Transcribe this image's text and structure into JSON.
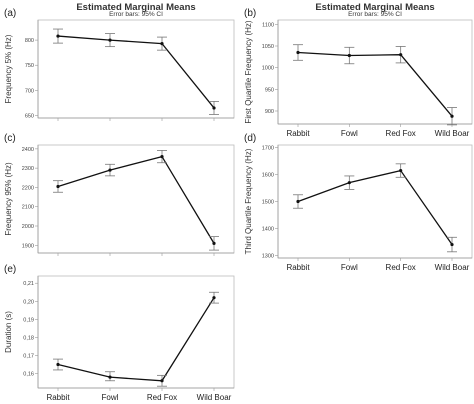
{
  "chart_data": [
    {
      "type": "line",
      "panel": "(a)",
      "title": "Estimated Marginal Means",
      "subtitle": "Error bars: 95% CI",
      "ylabel": "Frequency 5% (Hz)",
      "categories": [
        "Rabbit",
        "Fowl",
        "Red Fox",
        "Wild Boar"
      ],
      "values": [
        808,
        800,
        793,
        665
      ],
      "ci": [
        [
          794,
          822
        ],
        [
          787,
          813
        ],
        [
          780,
          806
        ],
        [
          652,
          678
        ]
      ],
      "yticks": [
        "650",
        "700",
        "750",
        "800"
      ],
      "ytick_values": [
        650,
        700,
        750,
        800
      ],
      "ylim": [
        645,
        840
      ],
      "show_xticks": false
    },
    {
      "type": "line",
      "panel": "(b)",
      "title": "Estimated Marginal Means",
      "subtitle": "Error bars: 95% CI",
      "ylabel": "First Quartile Frequency (Hz)",
      "categories": [
        "Rabbit",
        "Fowl",
        "Red Fox",
        "Wild Boar"
      ],
      "values": [
        1035,
        1028,
        1030,
        888
      ],
      "ci": [
        [
          1017,
          1053
        ],
        [
          1009,
          1047
        ],
        [
          1011,
          1049
        ],
        [
          868,
          908
        ]
      ],
      "yticks": [
        "900",
        "950",
        "1000",
        "1050",
        "1100"
      ],
      "ytick_values": [
        900,
        950,
        1000,
        1050,
        1100
      ],
      "ylim": [
        870,
        1110
      ],
      "show_xticks": true
    },
    {
      "type": "line",
      "panel": "(c)",
      "title": "",
      "subtitle": "",
      "ylabel": "Frequency 95% (Hz)",
      "categories": [
        "Rabbit",
        "Fowl",
        "Red Fox",
        "Wild Boar"
      ],
      "values": [
        2205,
        2290,
        2360,
        1910
      ],
      "ci": [
        [
          2175,
          2235
        ],
        [
          2260,
          2320
        ],
        [
          2328,
          2392
        ],
        [
          1875,
          1945
        ]
      ],
      "yticks": [
        "1900",
        "2000",
        "2100",
        "2200",
        "2300",
        "2400"
      ],
      "ytick_values": [
        1900,
        2000,
        2100,
        2200,
        2300,
        2400
      ],
      "ylim": [
        1860,
        2420
      ],
      "show_xticks": false
    },
    {
      "type": "line",
      "panel": "(d)",
      "title": "",
      "subtitle": "",
      "ylabel": "Third Quartile Frequency (Hz)",
      "categories": [
        "Rabbit",
        "Fowl",
        "Red Fox",
        "Wild Boar"
      ],
      "values": [
        1500,
        1570,
        1615,
        1340
      ],
      "ci": [
        [
          1475,
          1525
        ],
        [
          1545,
          1595
        ],
        [
          1590,
          1640
        ],
        [
          1313,
          1367
        ]
      ],
      "yticks": [
        "1300",
        "1400",
        "1500",
        "1600",
        "1700"
      ],
      "ytick_values": [
        1300,
        1400,
        1500,
        1600,
        1700
      ],
      "ylim": [
        1290,
        1710
      ],
      "show_xticks": true
    },
    {
      "type": "line",
      "panel": "(e)",
      "title": "",
      "subtitle": "",
      "ylabel": "Duration (s)",
      "categories": [
        "Rabbit",
        "Fowl",
        "Red Fox",
        "Wild Boar"
      ],
      "values": [
        0.165,
        0.158,
        0.156,
        0.202
      ],
      "ci": [
        [
          0.162,
          0.168
        ],
        [
          0.156,
          0.161
        ],
        [
          0.153,
          0.159
        ],
        [
          0.199,
          0.205
        ]
      ],
      "yticks": [
        "0,16",
        "0,17",
        "0,18",
        "0,19",
        "0,20",
        "0,21"
      ],
      "ytick_values": [
        0.16,
        0.17,
        0.18,
        0.19,
        0.2,
        0.21
      ],
      "ylim": [
        0.152,
        0.214
      ],
      "show_xticks": true
    }
  ]
}
